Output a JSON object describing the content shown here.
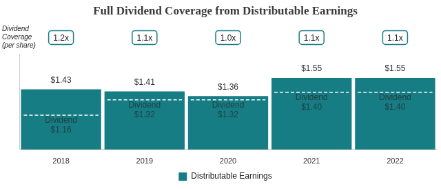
{
  "chart_data": {
    "type": "bar",
    "title": "Full Dividend Coverage from Distributable Earnings",
    "categories": [
      "2018",
      "2019",
      "2020",
      "2021",
      "2022"
    ],
    "series": [
      {
        "name": "Distributable Earnings",
        "color": "#177d84",
        "values": [
          1.43,
          1.41,
          1.36,
          1.55,
          1.55
        ],
        "value_labels": [
          "$1.43",
          "$1.41",
          "$1.36",
          "$1.55",
          "$1.55"
        ]
      }
    ],
    "dividends": {
      "label": "Dividend",
      "values": [
        1.16,
        1.32,
        1.32,
        1.4,
        1.4
      ],
      "value_labels": [
        "$1.16",
        "$1.32",
        "$1.32",
        "$1.40",
        "$1.40"
      ]
    },
    "dividend_coverage": {
      "label": [
        "Dividend",
        "Coverage",
        "(per share)"
      ],
      "values": [
        1.2,
        1.1,
        1.0,
        1.1,
        1.1
      ],
      "value_labels": [
        "1.2x",
        "1.1x",
        "1.0x",
        "1.1x",
        "1.1x"
      ]
    },
    "ylim": [
      0.8,
      1.8
    ],
    "legend": "bottom",
    "data_labels": true,
    "tick_labels": "x",
    "grid": false
  }
}
